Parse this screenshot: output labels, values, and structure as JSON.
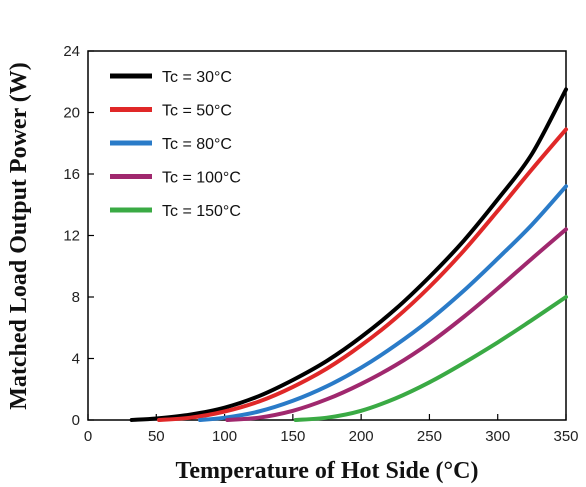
{
  "chart_data": {
    "type": "line",
    "title": "",
    "xlabel": "Temperature of Hot Side (°C)",
    "ylabel": "Matched Load Output Power (W)",
    "xlim": [
      0,
      350
    ],
    "ylim": [
      0,
      24
    ],
    "xticks": [
      "0",
      "50",
      "100",
      "150",
      "200",
      "250",
      "300",
      "350"
    ],
    "yticks": [
      "0",
      "4",
      "8",
      "12",
      "16",
      "20",
      "24"
    ],
    "grid": false,
    "legend_position": "top-left",
    "series": [
      {
        "name": "Tc = 30°C",
        "color": "#000000",
        "x": [
          32,
          50,
          75,
          100,
          125,
          150,
          175,
          200,
          225,
          250,
          275,
          300,
          325,
          350
        ],
        "y": [
          0.0,
          0.1,
          0.35,
          0.8,
          1.55,
          2.6,
          3.85,
          5.4,
          7.2,
          9.3,
          11.65,
          14.35,
          17.3,
          21.5
        ]
      },
      {
        "name": "Tc = 50°C",
        "color": "#e02828",
        "x": [
          52,
          75,
          100,
          125,
          150,
          175,
          200,
          225,
          250,
          275,
          300,
          325,
          350
        ],
        "y": [
          0.0,
          0.15,
          0.55,
          1.2,
          2.15,
          3.35,
          4.85,
          6.6,
          8.65,
          11.0,
          13.6,
          16.3,
          18.9
        ]
      },
      {
        "name": "Tc = 80°C",
        "color": "#2a7bc8",
        "x": [
          82,
          100,
          125,
          150,
          175,
          200,
          225,
          250,
          275,
          300,
          325,
          350
        ],
        "y": [
          0.0,
          0.15,
          0.55,
          1.25,
          2.2,
          3.4,
          4.85,
          6.5,
          8.4,
          10.5,
          12.7,
          15.2
        ]
      },
      {
        "name": "Tc = 100°C",
        "color": "#a0286e",
        "x": [
          102,
          125,
          150,
          175,
          200,
          225,
          250,
          275,
          300,
          325,
          350
        ],
        "y": [
          0.0,
          0.15,
          0.6,
          1.35,
          2.35,
          3.55,
          5.0,
          6.7,
          8.55,
          10.5,
          12.4
        ]
      },
      {
        "name": "Tc = 150°C",
        "color": "#3aaa44",
        "x": [
          152,
          175,
          200,
          225,
          250,
          275,
          300,
          325,
          350
        ],
        "y": [
          0.0,
          0.15,
          0.6,
          1.4,
          2.45,
          3.7,
          5.05,
          6.5,
          8.0
        ]
      }
    ]
  }
}
